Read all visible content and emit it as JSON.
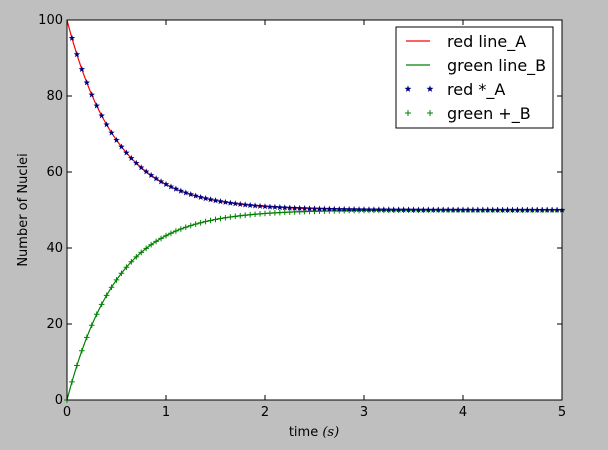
{
  "chart_data": {
    "type": "line",
    "xlabel_main": "time ",
    "xlabel_unit": "(s)",
    "ylabel": "Number of Nuclei",
    "xlim": [
      0,
      5
    ],
    "ylim": [
      0,
      100
    ],
    "xticks": [
      "0",
      "1",
      "2",
      "3",
      "4",
      "5"
    ],
    "yticks": [
      "0",
      "20",
      "40",
      "60",
      "80",
      "100"
    ],
    "grid": false,
    "legend_position": "top-right",
    "model": {
      "N0": 100,
      "equilibrium": 50,
      "decay_rate_per_s": 2.0,
      "marker_step_s": 0.05
    },
    "series": [
      {
        "name": "red line_A",
        "kind": "line",
        "color": "#ff0000",
        "values": "N_A(t) = 50 + 50·e^(−2t)"
      },
      {
        "name": "green line_B",
        "kind": "line",
        "color": "#008000",
        "values": "N_B(t) = 50 − 50·e^(−2t)"
      },
      {
        "name": "red *_A",
        "kind": "marker-star",
        "color": "#000080",
        "values": "N_A(t) sampled every 0.05 s"
      },
      {
        "name": "green +_B",
        "kind": "marker-plus",
        "color": "#008000",
        "values": "N_B(t) sampled every 0.05 s"
      }
    ]
  }
}
